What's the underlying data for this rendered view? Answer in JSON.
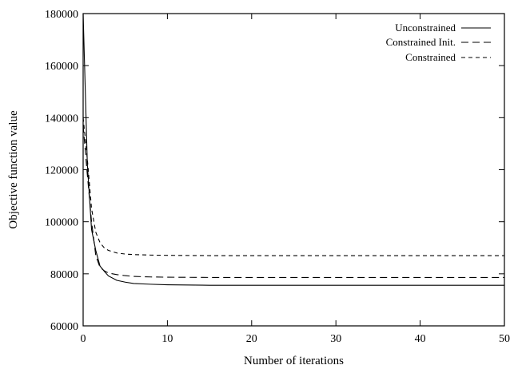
{
  "chart_data": {
    "type": "line",
    "title": "",
    "xlabel": "Number of iterations",
    "ylabel": "Objective function value",
    "xlim": [
      0,
      50
    ],
    "ylim": [
      60000,
      180000
    ],
    "x_ticks": [
      0,
      10,
      20,
      30,
      40,
      50
    ],
    "y_ticks": [
      60000,
      80000,
      100000,
      120000,
      140000,
      160000,
      180000
    ],
    "x_tick_labels": [
      "0",
      "10",
      "20",
      "30",
      "40",
      "50"
    ],
    "y_tick_labels": [
      "60000",
      "80000",
      "100000",
      "120000",
      "140000",
      "160000",
      "180000"
    ],
    "grid": false,
    "legend_position": "top-right",
    "series": [
      {
        "name": "Unconstrained",
        "style": "solid",
        "x": [
          0,
          0.5,
          1,
          1.5,
          2,
          2.5,
          3,
          4,
          5,
          6,
          8,
          10,
          15,
          20,
          30,
          40,
          50
        ],
        "y": [
          180000,
          122000,
          97000,
          89000,
          83000,
          81000,
          79200,
          77500,
          76800,
          76300,
          76000,
          75800,
          75600,
          75600,
          75600,
          75600,
          75600
        ]
      },
      {
        "name": "Constrained Init.",
        "style": "long-dash",
        "x": [
          0,
          0.5,
          1,
          1.5,
          2,
          2.5,
          3,
          4,
          5,
          6,
          8,
          10,
          15,
          20,
          30,
          40,
          50
        ],
        "y": [
          137000,
          118000,
          100000,
          87000,
          82500,
          81200,
          80300,
          79700,
          79300,
          79000,
          78800,
          78700,
          78600,
          78600,
          78600,
          78600,
          78600
        ]
      },
      {
        "name": "Constrained",
        "style": "short-dash",
        "x": [
          0,
          0.5,
          1,
          1.5,
          2,
          2.5,
          3,
          4,
          5,
          6,
          8,
          10,
          15,
          20,
          30,
          40,
          50
        ],
        "y": [
          140000,
          124000,
          105000,
          96000,
          92000,
          90000,
          89000,
          88000,
          87600,
          87400,
          87200,
          87100,
          87000,
          87000,
          87000,
          87000,
          87000
        ]
      }
    ]
  }
}
